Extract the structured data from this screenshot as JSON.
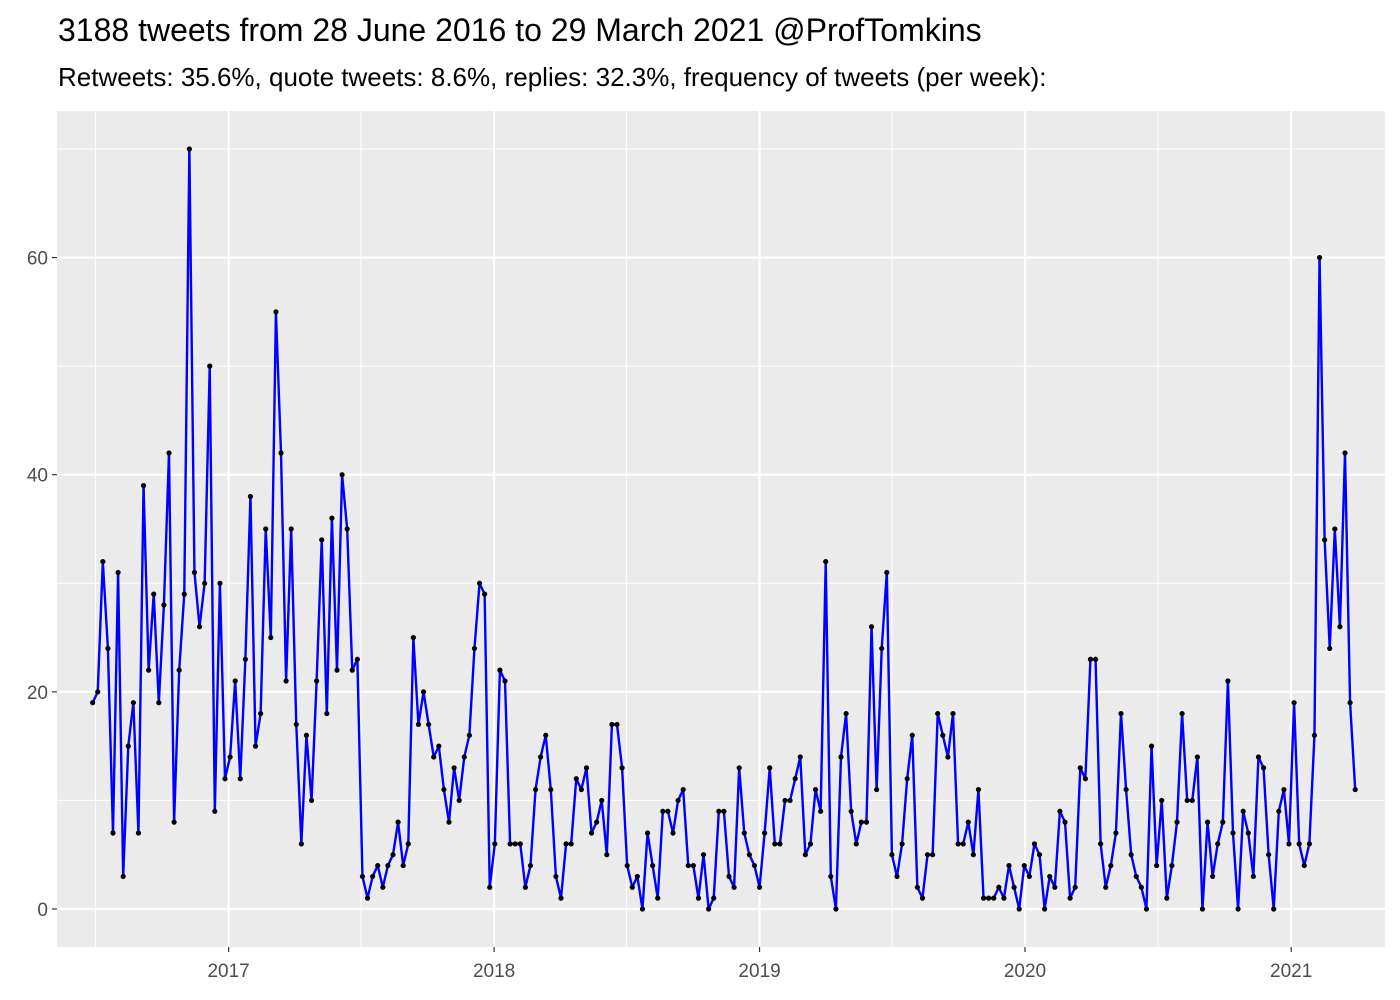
{
  "chart_data": {
    "type": "line",
    "title": "3188 tweets from 28 June 2016 to 29 March 2021 @ProfTomkins",
    "subtitle": "Retweets: 35.6%, quote tweets: 8.6%, replies: 32.3%, frequency of tweets (per week):",
    "xlabel": "",
    "ylabel": "",
    "x_range": [
      "2016-05-10",
      "2021-05-10"
    ],
    "ylim": [
      -3.5,
      73.5
    ],
    "x_ticks": [
      "2017",
      "2018",
      "2019",
      "2020",
      "2021"
    ],
    "y_ticks": [
      0,
      20,
      40,
      60
    ],
    "grid": true,
    "x_start_date": "2016-06-28",
    "x_interval_days": 7,
    "line_color": "#0000ff",
    "point_color": "#000000",
    "panel_color": "#ebebeb",
    "grid_color": "#ffffff",
    "series": [
      {
        "values": [
          19,
          20,
          32,
          24,
          7,
          31,
          3,
          15,
          19,
          7,
          39,
          22,
          29,
          19,
          28,
          42,
          8,
          22,
          29,
          70,
          31,
          26,
          30,
          50,
          9,
          30,
          12,
          14,
          21,
          12,
          23,
          38,
          15,
          18,
          35,
          25,
          55,
          42,
          21,
          35,
          17,
          6,
          16,
          10,
          21,
          34,
          18,
          36,
          22,
          40,
          35,
          22,
          23,
          3,
          1,
          3,
          4,
          2,
          4,
          5,
          8,
          4,
          6,
          25,
          17,
          20,
          17,
          14,
          15,
          11,
          8,
          13,
          10,
          14,
          16,
          24,
          30,
          29,
          2,
          6,
          22,
          21,
          6,
          6,
          6,
          2,
          4,
          11,
          14,
          16,
          11,
          3,
          1,
          6,
          6,
          12,
          11,
          13,
          7,
          8,
          10,
          5,
          17,
          17,
          13,
          4,
          2,
          3,
          0,
          7,
          4,
          1,
          9,
          9,
          7,
          10,
          11,
          4,
          4,
          1,
          5,
          0,
          1,
          9,
          9,
          3,
          2,
          13,
          7,
          5,
          4,
          2,
          7,
          13,
          6,
          6,
          10,
          10,
          12,
          14,
          5,
          6,
          11,
          9,
          32,
          3,
          0,
          14,
          18,
          9,
          6,
          8,
          8,
          26,
          11,
          24,
          31,
          5,
          3,
          6,
          12,
          16,
          2,
          1,
          5,
          5,
          18,
          16,
          14,
          18,
          6,
          6,
          8,
          5,
          11,
          1,
          1,
          1,
          2,
          1,
          4,
          2,
          0,
          4,
          3,
          6,
          5,
          0,
          3,
          2,
          9,
          8,
          1,
          2,
          13,
          12,
          23,
          23,
          6,
          2,
          4,
          7,
          18,
          11,
          5,
          3,
          2,
          0,
          15,
          4,
          10,
          1,
          4,
          8,
          18,
          10,
          10,
          14,
          0,
          8,
          3,
          6,
          8,
          21,
          7,
          0,
          9,
          7,
          3,
          14,
          13,
          5,
          0,
          9,
          11,
          6,
          19,
          6,
          4,
          6,
          16,
          60,
          34,
          24,
          35,
          26,
          42,
          19,
          11
        ]
      }
    ]
  }
}
